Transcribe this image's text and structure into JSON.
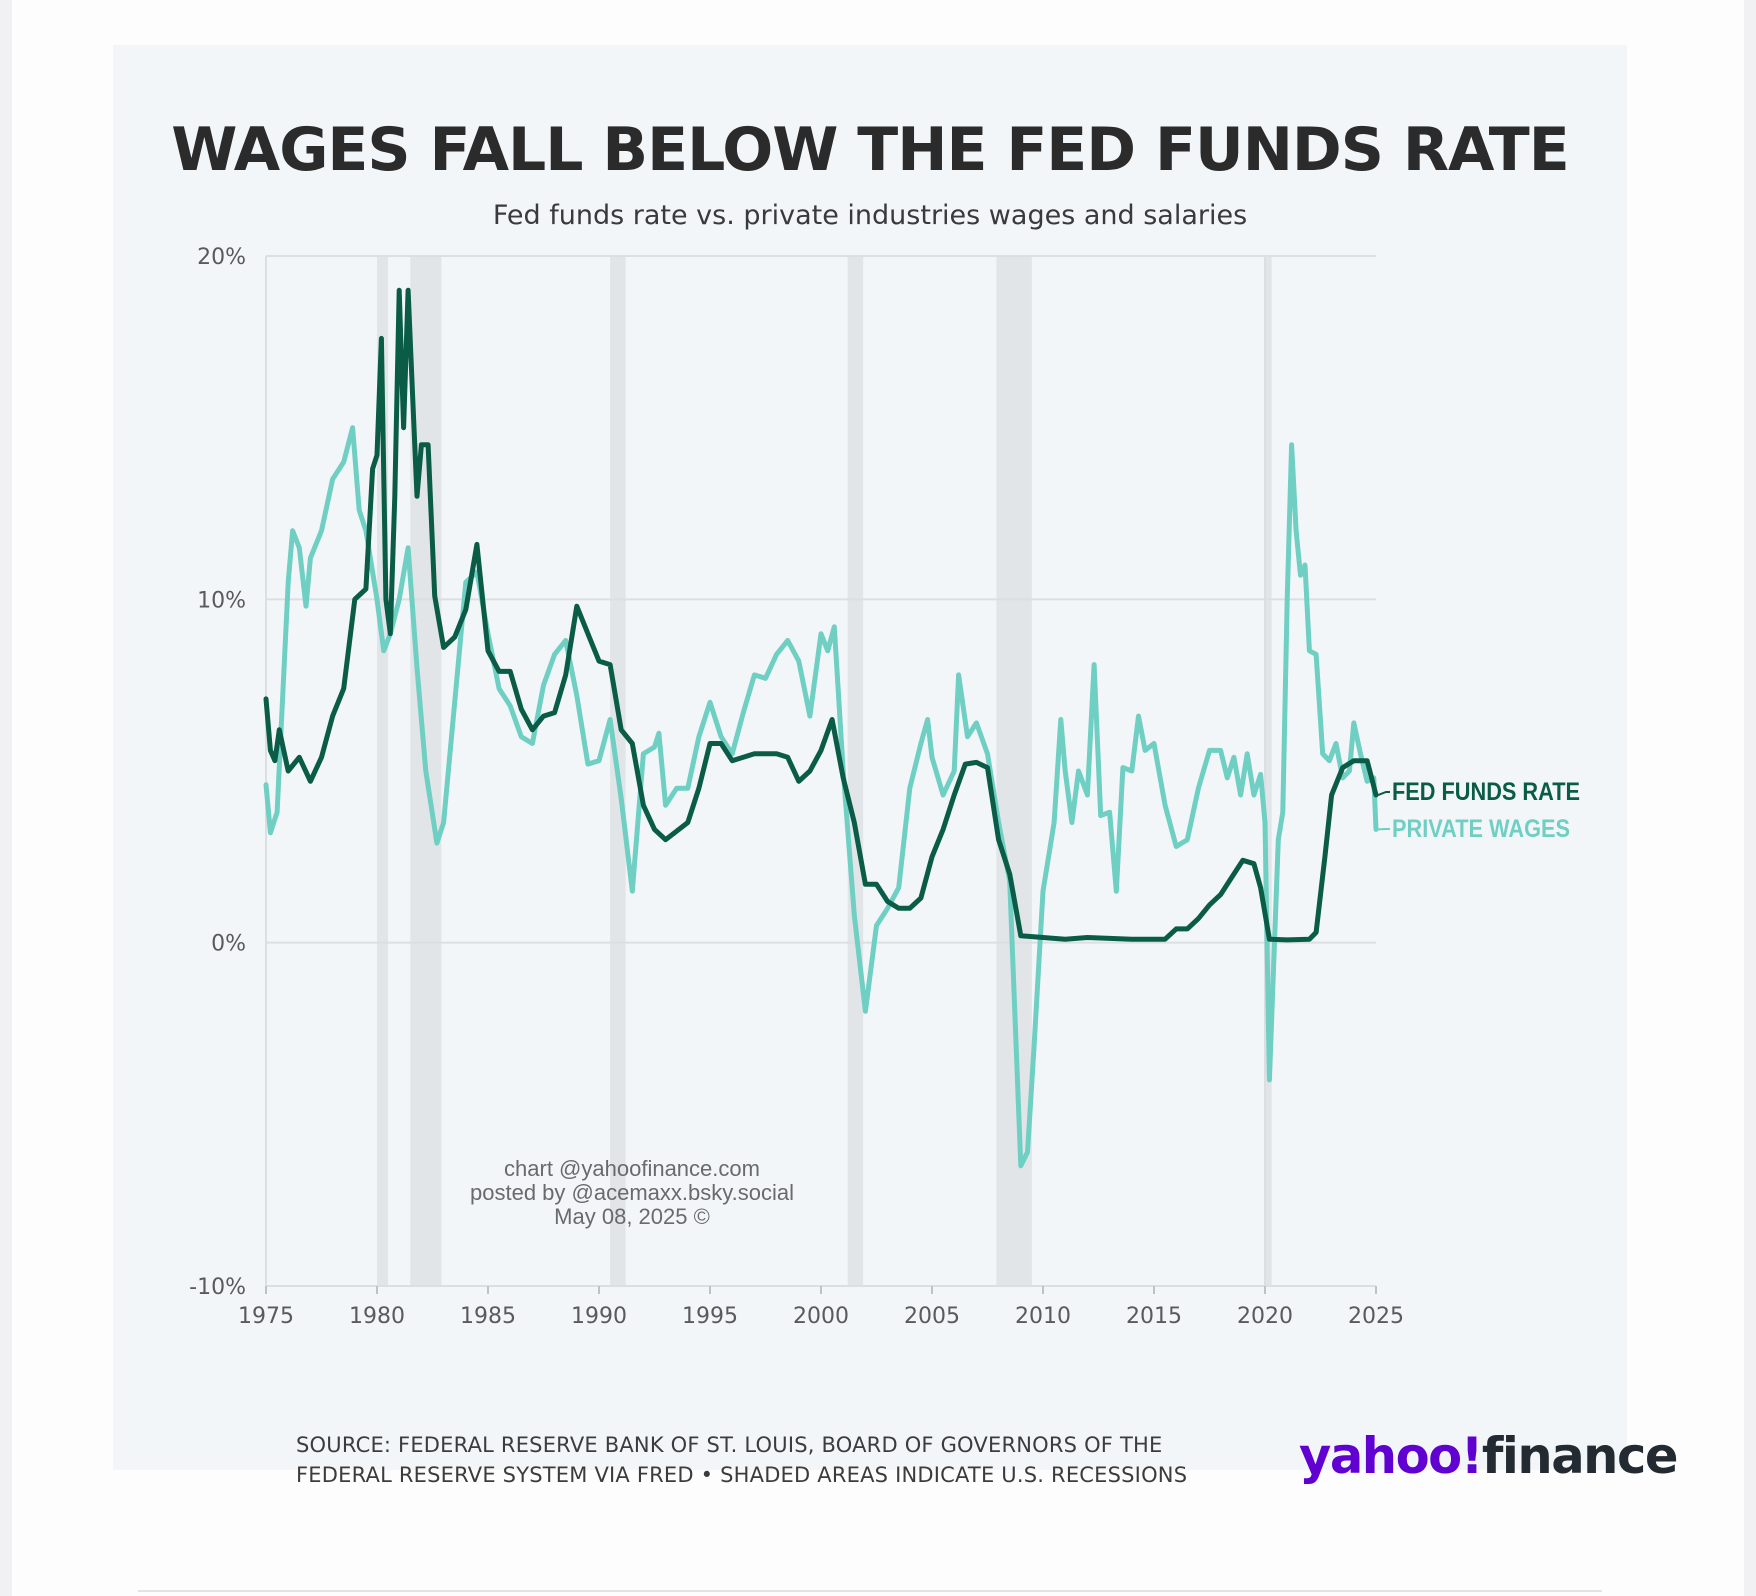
{
  "header": {
    "title": "WAGES FALL BELOW THE FED FUNDS RATE",
    "subtitle": "Fed funds rate vs. private industries wages and salaries"
  },
  "footer": {
    "source_line1": "SOURCE: FEDERAL RESERVE BANK OF ST. LOUIS, BOARD OF GOVERNORS OF THE",
    "source_line2": "FEDERAL RESERVE SYSTEM VIA FRED • SHADED AREAS INDICATE U.S. RECESSIONS",
    "logo_text": "yahoo!finance"
  },
  "watermark": {
    "line1": "chart @yahoofinance.com",
    "line2": "posted by @acemaxx.bsky.social",
    "line3": "May 08, 2025 ©"
  },
  "colors": {
    "card_background": "#f3f6f9",
    "fed_funds": "#0a5c47",
    "private_wages": "#6fcfc3",
    "recession_shade": "#e1e5e8",
    "gridline": "#dcdfe2",
    "logo_purple": "#6001d2",
    "logo_dark": "#232a31"
  },
  "chart_data": {
    "type": "line",
    "title": "WAGES FALL BELOW THE FED FUNDS RATE",
    "subtitle": "Fed funds rate vs. private industries wages and salaries",
    "xlabel": "",
    "ylabel": "",
    "xlim": [
      1975,
      2025
    ],
    "ylim": [
      -10,
      20
    ],
    "grid": true,
    "legend": "right, end of lines",
    "x_ticks": [
      "1975",
      "1980",
      "1985",
      "1990",
      "1995",
      "2000",
      "2005",
      "2010",
      "2015",
      "2020",
      "2025"
    ],
    "y_ticks": [
      {
        "value": 20,
        "label": "20%"
      },
      {
        "value": 10,
        "label": "10%"
      },
      {
        "value": 0,
        "label": "0%"
      },
      {
        "value": -10,
        "label": "-10%"
      }
    ],
    "recessions": [
      [
        1980.0,
        1980.5
      ],
      [
        1981.5,
        1982.9
      ],
      [
        1990.5,
        1991.2
      ],
      [
        2001.2,
        2001.9
      ],
      [
        2007.9,
        2009.5
      ],
      [
        2020.0,
        2020.3
      ]
    ],
    "series": [
      {
        "name": "FED FUNDS RATE",
        "color": "#0a5c47",
        "points": [
          [
            1975.0,
            7.1
          ],
          [
            1975.2,
            5.6
          ],
          [
            1975.4,
            5.3
          ],
          [
            1975.6,
            6.2
          ],
          [
            1976.0,
            5.0
          ],
          [
            1976.5,
            5.4
          ],
          [
            1977.0,
            4.7
          ],
          [
            1977.5,
            5.4
          ],
          [
            1978.0,
            6.6
          ],
          [
            1978.5,
            7.4
          ],
          [
            1979.0,
            10.0
          ],
          [
            1979.5,
            10.3
          ],
          [
            1979.8,
            13.8
          ],
          [
            1980.0,
            14.2
          ],
          [
            1980.2,
            17.6
          ],
          [
            1980.4,
            10.0
          ],
          [
            1980.6,
            9.0
          ],
          [
            1980.8,
            13.0
          ],
          [
            1981.0,
            19.0
          ],
          [
            1981.2,
            15.0
          ],
          [
            1981.4,
            19.0
          ],
          [
            1981.6,
            16.0
          ],
          [
            1981.8,
            13.0
          ],
          [
            1982.0,
            14.5
          ],
          [
            1982.3,
            14.5
          ],
          [
            1982.6,
            10.1
          ],
          [
            1983.0,
            8.6
          ],
          [
            1983.5,
            8.9
          ],
          [
            1984.0,
            9.7
          ],
          [
            1984.5,
            11.6
          ],
          [
            1985.0,
            8.5
          ],
          [
            1985.5,
            7.9
          ],
          [
            1986.0,
            7.9
          ],
          [
            1986.5,
            6.8
          ],
          [
            1987.0,
            6.2
          ],
          [
            1987.5,
            6.6
          ],
          [
            1988.0,
            6.7
          ],
          [
            1988.5,
            7.8
          ],
          [
            1989.0,
            9.8
          ],
          [
            1989.5,
            9.0
          ],
          [
            1990.0,
            8.2
          ],
          [
            1990.5,
            8.1
          ],
          [
            1991.0,
            6.2
          ],
          [
            1991.5,
            5.8
          ],
          [
            1992.0,
            4.0
          ],
          [
            1992.5,
            3.3
          ],
          [
            1993.0,
            3.0
          ],
          [
            1994.0,
            3.5
          ],
          [
            1994.5,
            4.5
          ],
          [
            1995.0,
            5.8
          ],
          [
            1995.5,
            5.8
          ],
          [
            1996.0,
            5.3
          ],
          [
            1997.0,
            5.5
          ],
          [
            1998.0,
            5.5
          ],
          [
            1998.5,
            5.4
          ],
          [
            1999.0,
            4.7
          ],
          [
            1999.5,
            5.0
          ],
          [
            2000.0,
            5.6
          ],
          [
            2000.5,
            6.5
          ],
          [
            2001.0,
            4.8
          ],
          [
            2001.5,
            3.5
          ],
          [
            2002.0,
            1.7
          ],
          [
            2002.5,
            1.7
          ],
          [
            2003.0,
            1.2
          ],
          [
            2003.5,
            1.0
          ],
          [
            2004.0,
            1.0
          ],
          [
            2004.5,
            1.3
          ],
          [
            2005.0,
            2.5
          ],
          [
            2005.5,
            3.3
          ],
          [
            2006.0,
            4.3
          ],
          [
            2006.5,
            5.2
          ],
          [
            2007.0,
            5.25
          ],
          [
            2007.5,
            5.1
          ],
          [
            2008.0,
            3.0
          ],
          [
            2008.5,
            2.0
          ],
          [
            2009.0,
            0.2
          ],
          [
            2010.0,
            0.15
          ],
          [
            2011.0,
            0.1
          ],
          [
            2012.0,
            0.15
          ],
          [
            2014.0,
            0.1
          ],
          [
            2015.5,
            0.1
          ],
          [
            2016.0,
            0.4
          ],
          [
            2016.5,
            0.4
          ],
          [
            2017.0,
            0.7
          ],
          [
            2017.5,
            1.1
          ],
          [
            2018.0,
            1.4
          ],
          [
            2018.5,
            1.9
          ],
          [
            2019.0,
            2.4
          ],
          [
            2019.5,
            2.3
          ],
          [
            2019.8,
            1.6
          ],
          [
            2020.2,
            0.1
          ],
          [
            2021.0,
            0.08
          ],
          [
            2022.0,
            0.1
          ],
          [
            2022.3,
            0.3
          ],
          [
            2022.7,
            2.5
          ],
          [
            2023.0,
            4.3
          ],
          [
            2023.5,
            5.1
          ],
          [
            2024.0,
            5.3
          ],
          [
            2024.6,
            5.3
          ],
          [
            2024.8,
            4.8
          ],
          [
            2025.0,
            4.3
          ]
        ]
      },
      {
        "name": "PRIVATE WAGES",
        "color": "#6fcfc3",
        "points": [
          [
            1975.0,
            4.6
          ],
          [
            1975.2,
            3.2
          ],
          [
            1975.5,
            3.8
          ],
          [
            1976.0,
            10.5
          ],
          [
            1976.2,
            12.0
          ],
          [
            1976.5,
            11.5
          ],
          [
            1976.8,
            9.8
          ],
          [
            1977.0,
            11.2
          ],
          [
            1977.5,
            12.0
          ],
          [
            1978.0,
            13.5
          ],
          [
            1978.5,
            14.0
          ],
          [
            1978.9,
            15.0
          ],
          [
            1979.2,
            12.6
          ],
          [
            1979.5,
            12.0
          ],
          [
            1980.0,
            10.0
          ],
          [
            1980.3,
            8.5
          ],
          [
            1980.6,
            9.0
          ],
          [
            1981.0,
            10.0
          ],
          [
            1981.4,
            11.5
          ],
          [
            1981.8,
            8.0
          ],
          [
            1982.2,
            5.0
          ],
          [
            1982.7,
            2.9
          ],
          [
            1983.0,
            3.5
          ],
          [
            1983.5,
            7.0
          ],
          [
            1984.0,
            10.5
          ],
          [
            1984.5,
            10.8
          ],
          [
            1985.0,
            9.0
          ],
          [
            1985.5,
            7.4
          ],
          [
            1986.0,
            6.9
          ],
          [
            1986.5,
            6.0
          ],
          [
            1987.0,
            5.8
          ],
          [
            1987.5,
            7.5
          ],
          [
            1988.0,
            8.4
          ],
          [
            1988.5,
            8.8
          ],
          [
            1989.0,
            7.2
          ],
          [
            1989.5,
            5.2
          ],
          [
            1990.0,
            5.3
          ],
          [
            1990.5,
            6.5
          ],
          [
            1991.0,
            4.2
          ],
          [
            1991.5,
            1.5
          ],
          [
            1992.0,
            5.5
          ],
          [
            1992.5,
            5.7
          ],
          [
            1992.7,
            6.1
          ],
          [
            1993.0,
            4.0
          ],
          [
            1993.5,
            4.5
          ],
          [
            1994.0,
            4.5
          ],
          [
            1994.5,
            6.0
          ],
          [
            1995.0,
            7.0
          ],
          [
            1995.5,
            6.0
          ],
          [
            1996.0,
            5.5
          ],
          [
            1996.5,
            6.7
          ],
          [
            1997.0,
            7.8
          ],
          [
            1997.5,
            7.7
          ],
          [
            1998.0,
            8.4
          ],
          [
            1998.5,
            8.8
          ],
          [
            1999.0,
            8.2
          ],
          [
            1999.5,
            6.6
          ],
          [
            2000.0,
            9.0
          ],
          [
            2000.3,
            8.5
          ],
          [
            2000.6,
            9.2
          ],
          [
            2001.0,
            5.0
          ],
          [
            2001.5,
            0.8
          ],
          [
            2002.0,
            -2.0
          ],
          [
            2002.5,
            0.5
          ],
          [
            2003.0,
            1.0
          ],
          [
            2003.5,
            1.6
          ],
          [
            2004.0,
            4.5
          ],
          [
            2004.5,
            5.8
          ],
          [
            2004.8,
            6.5
          ],
          [
            2005.0,
            5.4
          ],
          [
            2005.5,
            4.3
          ],
          [
            2006.0,
            5.0
          ],
          [
            2006.2,
            7.8
          ],
          [
            2006.6,
            6.0
          ],
          [
            2007.0,
            6.4
          ],
          [
            2007.5,
            5.5
          ],
          [
            2008.0,
            3.5
          ],
          [
            2008.5,
            1.8
          ],
          [
            2009.0,
            -6.5
          ],
          [
            2009.3,
            -6.1
          ],
          [
            2009.6,
            -3.0
          ],
          [
            2010.0,
            1.5
          ],
          [
            2010.5,
            3.5
          ],
          [
            2010.8,
            6.5
          ],
          [
            2011.0,
            5.0
          ],
          [
            2011.3,
            3.5
          ],
          [
            2011.6,
            5.0
          ],
          [
            2012.0,
            4.3
          ],
          [
            2012.3,
            8.1
          ],
          [
            2012.6,
            3.7
          ],
          [
            2013.0,
            3.8
          ],
          [
            2013.3,
            1.5
          ],
          [
            2013.6,
            5.1
          ],
          [
            2014.0,
            5.0
          ],
          [
            2014.3,
            6.6
          ],
          [
            2014.6,
            5.6
          ],
          [
            2015.0,
            5.8
          ],
          [
            2015.5,
            4.0
          ],
          [
            2016.0,
            2.8
          ],
          [
            2016.5,
            3.0
          ],
          [
            2017.0,
            4.5
          ],
          [
            2017.5,
            5.6
          ],
          [
            2018.0,
            5.6
          ],
          [
            2018.3,
            4.8
          ],
          [
            2018.6,
            5.4
          ],
          [
            2018.9,
            4.3
          ],
          [
            2019.2,
            5.5
          ],
          [
            2019.5,
            4.3
          ],
          [
            2019.8,
            4.9
          ],
          [
            2020.0,
            3.5
          ],
          [
            2020.2,
            -4.0
          ],
          [
            2020.6,
            3.0
          ],
          [
            2020.8,
            3.8
          ],
          [
            2021.0,
            10.0
          ],
          [
            2021.2,
            14.5
          ],
          [
            2021.4,
            12.0
          ],
          [
            2021.6,
            10.7
          ],
          [
            2021.8,
            11.0
          ],
          [
            2022.0,
            8.5
          ],
          [
            2022.3,
            8.4
          ],
          [
            2022.6,
            5.5
          ],
          [
            2022.9,
            5.3
          ],
          [
            2023.2,
            5.8
          ],
          [
            2023.5,
            4.8
          ],
          [
            2023.8,
            5.0
          ],
          [
            2024.0,
            6.4
          ],
          [
            2024.3,
            5.5
          ],
          [
            2024.6,
            4.7
          ],
          [
            2024.9,
            4.8
          ],
          [
            2025.0,
            3.3
          ]
        ]
      }
    ]
  }
}
